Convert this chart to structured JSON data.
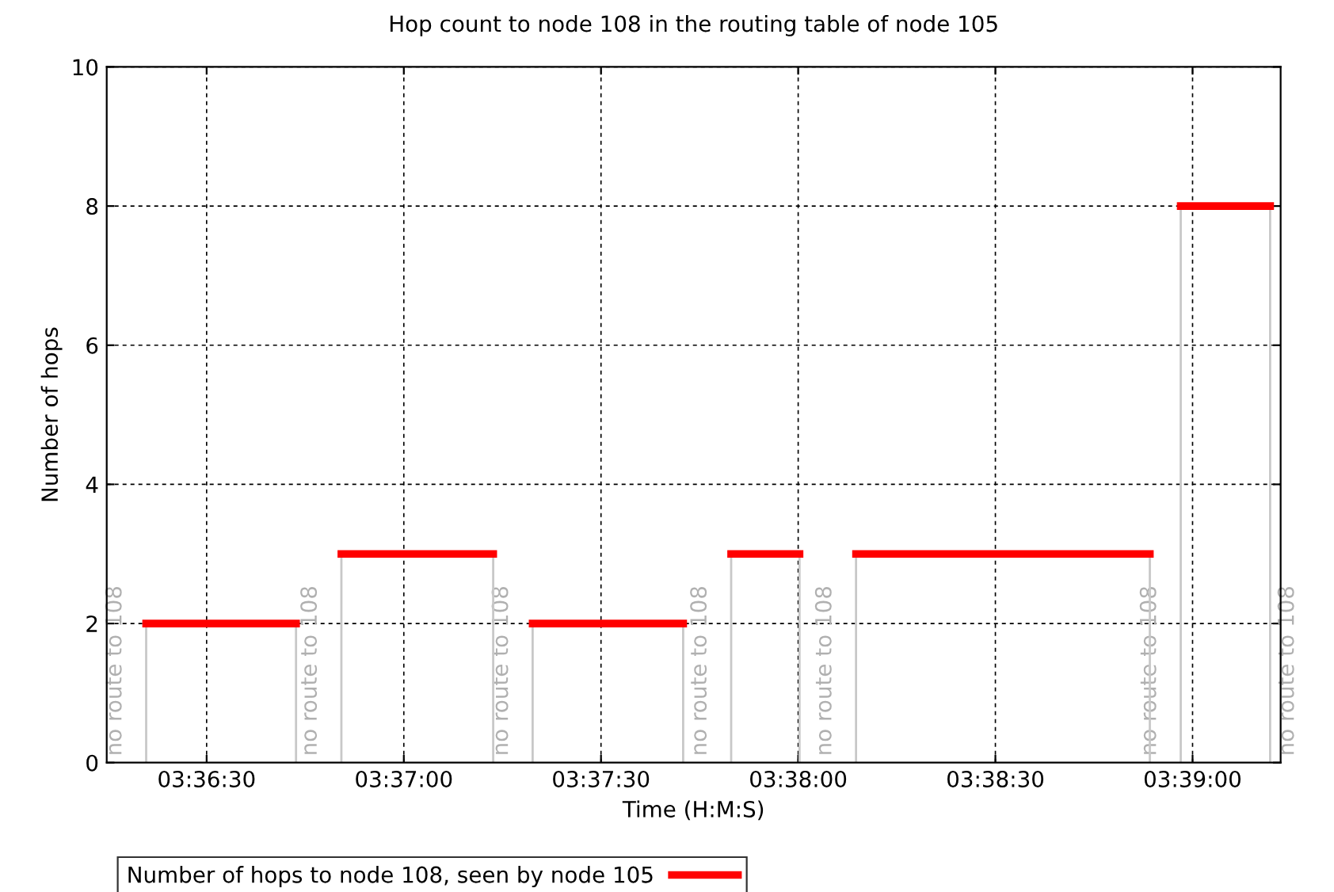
{
  "chart_data": {
    "type": "line",
    "title": "Hop count to node 108 in the routing table of node 105",
    "xlabel": "Time (H:M:S)",
    "ylabel": "Number of hops",
    "series": [
      {
        "color": "#c8c8c8",
        "x": [
          3.605778,
          3.605778,
          null,
          3.612111,
          3.612111,
          null,
          3.614028,
          3.614028,
          null,
          3.620444,
          3.620444,
          null,
          3.622111,
          3.622111,
          null,
          3.628472,
          3.628472,
          null,
          3.6305,
          3.6305,
          null,
          3.633389,
          3.633389,
          null,
          3.635778,
          3.635778,
          null,
          3.648194,
          3.648194,
          null,
          3.6495,
          3.6495,
          null,
          3.653278,
          3.653278
        ],
        "values": [
          0,
          2,
          null,
          2,
          0,
          null,
          0,
          3,
          null,
          3,
          0,
          null,
          0,
          2,
          null,
          2,
          0,
          null,
          0,
          3,
          null,
          3,
          0,
          null,
          0,
          3,
          null,
          3,
          0,
          null,
          0,
          8,
          null,
          8,
          0
        ]
      },
      {
        "name": "Number of hops to node 108, seen by node 105",
        "color": "#ff0000",
        "x": [
          3.605778,
          3.612111,
          null,
          3.614028,
          3.620444,
          null,
          3.622111,
          3.628472,
          null,
          3.6305,
          3.633389,
          null,
          3.635778,
          3.648194,
          null,
          3.6495,
          3.653278
        ],
        "values": [
          2,
          2,
          null,
          3,
          3,
          null,
          2,
          2,
          null,
          3,
          3,
          null,
          3,
          3,
          null,
          8,
          8
        ]
      }
    ],
    "annotations": [
      "no route to 108",
      "no route to 108",
      "no route to 108",
      "no route to 108",
      "no route to 108",
      "no route to 108",
      "no route to 108"
    ],
    "xlim": [
      3.604111,
      3.653722
    ],
    "ylim": [
      0,
      10
    ],
    "xticks": [
      {
        "value": 3.608333,
        "label": "03:36:30"
      },
      {
        "value": 3.616667,
        "label": "03:37:00"
      },
      {
        "value": 3.625,
        "label": "03:37:30"
      },
      {
        "value": 3.633333,
        "label": "03:38:00"
      },
      {
        "value": 3.641667,
        "label": "03:38:30"
      },
      {
        "value": 3.65,
        "label": "03:39:00"
      }
    ],
    "yticks": [
      0,
      2,
      4,
      6,
      8,
      10
    ],
    "grid": true,
    "legend": "bottom",
    "line_style": "solid",
    "marker": "none"
  }
}
